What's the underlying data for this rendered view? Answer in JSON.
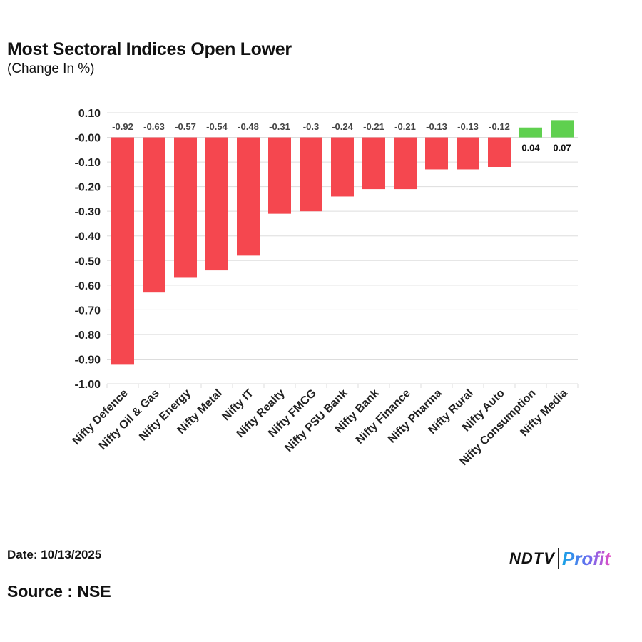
{
  "chart_data": {
    "type": "bar",
    "title": "Most Sectoral Indices Open Lower",
    "subtitle": "(Change In %)",
    "xlabel": "",
    "ylabel": "",
    "ylim": [
      -1.0,
      0.1
    ],
    "yticks": [
      0.1,
      0.0,
      -0.1,
      -0.2,
      -0.3,
      -0.4,
      -0.5,
      -0.6,
      -0.7,
      -0.8,
      -0.9,
      -1.0
    ],
    "ytick_labels": [
      "0.10",
      "-0.00",
      "-0.10",
      "-0.20",
      "-0.30",
      "-0.40",
      "-0.50",
      "-0.60",
      "-0.70",
      "-0.80",
      "-0.90",
      "-1.00"
    ],
    "grid": true,
    "legend": "none",
    "categories": [
      "Nifty Defence",
      "Nifty Oil & Gas",
      "Nifty Energy",
      "Nifty Metal",
      "Nifty IT",
      "Nifty Realty",
      "Nifty FMCG",
      "Nifty PSU Bank",
      "Nifty Bank",
      "Nifty Finance",
      "Nifty Pharma",
      "Nifty Rural",
      "Nifty Auto",
      "Nifty Consumption",
      "Nifty Media"
    ],
    "values": [
      -0.92,
      -0.63,
      -0.57,
      -0.54,
      -0.48,
      -0.31,
      -0.3,
      -0.24,
      -0.21,
      -0.21,
      -0.13,
      -0.13,
      -0.12,
      0.04,
      0.07
    ],
    "data_labels": [
      "-0.92",
      "-0.63",
      "-0.57",
      "-0.54",
      "-0.48",
      "-0.31",
      "-0.3",
      "-0.24",
      "-0.21",
      "-0.21",
      "-0.13",
      "-0.13",
      "-0.12",
      "0.04",
      "0.07"
    ],
    "colors": {
      "negative": "#f5474f",
      "positive": "#5fd04f",
      "grid": "#dddddd",
      "axis_text": "#222222",
      "label_text": "#444444"
    }
  },
  "footer": {
    "date": "Date: 10/13/2025",
    "source": "Source : NSE"
  },
  "logo": {
    "ndtv": "NDTV",
    "profit": "Profit"
  }
}
